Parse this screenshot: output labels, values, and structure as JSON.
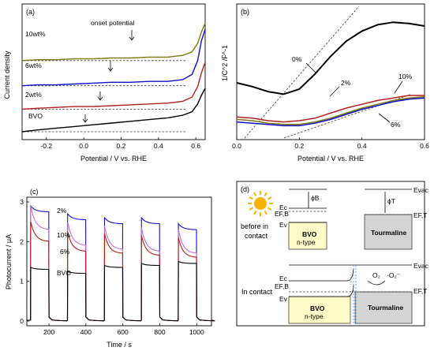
{
  "chart_data": [
    {
      "panel": "(a)",
      "type": "line",
      "xlabel": "Potential / V vs. RHE",
      "ylabel": "Current density",
      "xlim": [
        -0.33,
        0.65
      ],
      "xticks": [
        "-0.2",
        "0.0",
        "0.2",
        "0.4",
        "0.6"
      ],
      "annotation": "onset potential",
      "series": [
        {
          "name": "10wt%",
          "color": "#7a7a10",
          "x": [
            -0.33,
            -0.25,
            -0.15,
            -0.05,
            0.05,
            0.15,
            0.25,
            0.35,
            0.45,
            0.53,
            0.58,
            0.61,
            0.63,
            0.65
          ],
          "y": [
            8.2,
            8.3,
            8.3,
            8.4,
            8.4,
            8.5,
            8.5,
            8.6,
            8.6,
            8.8,
            9.2,
            10.2,
            11.5,
            12.5
          ]
        },
        {
          "name": "6wt%",
          "color": "#1010c8",
          "x": [
            -0.33,
            -0.25,
            -0.15,
            -0.05,
            0.05,
            0.15,
            0.25,
            0.35,
            0.45,
            0.53,
            0.58,
            0.61,
            0.63,
            0.65
          ],
          "y": [
            5.3,
            5.4,
            5.4,
            5.5,
            5.6,
            5.7,
            5.7,
            5.8,
            5.8,
            6.0,
            6.6,
            8.2,
            10.5,
            11.8
          ]
        },
        {
          "name": "2wt%",
          "color": "#b02020",
          "x": [
            -0.33,
            -0.25,
            -0.15,
            -0.05,
            0.05,
            0.15,
            0.25,
            0.35,
            0.45,
            0.53,
            0.58,
            0.61,
            0.63,
            0.65
          ],
          "y": [
            2.6,
            2.7,
            2.8,
            2.9,
            2.9,
            3.0,
            3.1,
            3.2,
            3.3,
            3.5,
            4.0,
            5.2,
            6.8,
            8.0
          ]
        },
        {
          "name": "BVO",
          "color": "#000000",
          "x": [
            -0.33,
            -0.25,
            -0.15,
            -0.05,
            0.05,
            0.15,
            0.25,
            0.35,
            0.45,
            0.53,
            0.58,
            0.61,
            0.63,
            0.65
          ],
          "y": [
            0.0,
            0.2,
            0.4,
            0.6,
            0.8,
            1.0,
            1.2,
            1.4,
            1.6,
            1.9,
            2.3,
            3.2,
            4.2,
            5.0
          ]
        }
      ]
    },
    {
      "panel": "(b)",
      "type": "line",
      "xlabel": "Potential / V vs. RHE",
      "ylabel": "1/C^2 /F^-1",
      "xlim": [
        0.0,
        0.6
      ],
      "xticks": [
        "0.0",
        "0.2",
        "0.4",
        "0.6"
      ],
      "series": [
        {
          "name": "0%",
          "color": "#000000",
          "x": [
            0.0,
            0.05,
            0.1,
            0.15,
            0.2,
            0.25,
            0.3,
            0.35,
            0.4,
            0.45,
            0.5,
            0.55,
            0.6
          ],
          "y": [
            0.45,
            0.42,
            0.38,
            0.36,
            0.4,
            0.52,
            0.66,
            0.78,
            0.86,
            0.91,
            0.93,
            0.92,
            0.9
          ]
        },
        {
          "name": "2%",
          "color": "#b02020",
          "x": [
            0.0,
            0.05,
            0.1,
            0.15,
            0.2,
            0.25,
            0.3,
            0.35,
            0.4,
            0.45,
            0.5,
            0.55,
            0.6
          ],
          "y": [
            0.18,
            0.17,
            0.15,
            0.14,
            0.15,
            0.17,
            0.21,
            0.25,
            0.28,
            0.31,
            0.33,
            0.35,
            0.35
          ]
        },
        {
          "name": "10%",
          "color": "#7a7a10",
          "x": [
            0.0,
            0.05,
            0.1,
            0.15,
            0.2,
            0.25,
            0.3,
            0.35,
            0.4,
            0.45,
            0.5,
            0.55,
            0.6
          ],
          "y": [
            0.16,
            0.15,
            0.13,
            0.12,
            0.12,
            0.14,
            0.17,
            0.21,
            0.25,
            0.28,
            0.31,
            0.33,
            0.34
          ]
        },
        {
          "name": "6%",
          "color": "#1010c8",
          "x": [
            0.0,
            0.05,
            0.1,
            0.15,
            0.2,
            0.25,
            0.3,
            0.35,
            0.4,
            0.45,
            0.5,
            0.55,
            0.6
          ],
          "y": [
            0.14,
            0.13,
            0.12,
            0.11,
            0.11,
            0.13,
            0.16,
            0.2,
            0.24,
            0.27,
            0.3,
            0.32,
            0.33
          ]
        }
      ]
    },
    {
      "panel": "(c)",
      "type": "line",
      "xlabel": "Time / s",
      "ylabel": "Photocurrent / μA",
      "xlim": [
        80,
        1080
      ],
      "ylim": [
        0,
        3
      ],
      "xticks": [
        200,
        400,
        600,
        800,
        1000
      ],
      "yticks": [
        0,
        1,
        2,
        3
      ],
      "on_times": [
        100,
        300,
        500,
        700,
        900
      ],
      "light_period": 100,
      "series": [
        {
          "name": "2%",
          "color": "#1010c8",
          "levels": [
            2.75,
            2.55,
            2.45,
            2.45,
            2.3
          ],
          "decay": 0.15
        },
        {
          "name": "10%",
          "color": "#c070c8",
          "levels": [
            2.3,
            1.9,
            1.8,
            1.75,
            1.7
          ],
          "decay": 0.6
        },
        {
          "name": "6%",
          "color": "#b02020",
          "levels": [
            2.0,
            1.75,
            1.7,
            1.65,
            1.6
          ],
          "decay": 0.5
        },
        {
          "name": "BVO",
          "color": "#000000",
          "levels": [
            1.3,
            1.2,
            1.35,
            1.4,
            1.45
          ],
          "decay": 0.05
        }
      ]
    }
  ],
  "labels": {
    "panel_a": "(a)",
    "panel_b": "(b)",
    "panel_c": "(c)",
    "panel_d": "(d)",
    "onset": "onset potential",
    "a_10": "10wt%",
    "a_6": "6wt%",
    "a_2": "2wt%",
    "a_bvo": "BVO",
    "b_0": "0%",
    "b_2": "2%",
    "b_10": "10%",
    "b_6": "6%",
    "c_2": "2%",
    "c_10": "10%",
    "c_6": "6%",
    "c_bvo": "BVO"
  },
  "diagram": {
    "before_label_1": "before in",
    "before_label_2": "contact",
    "in_contact_label": "In contact",
    "bvo_label_1": "BVO",
    "bvo_label_2": "n-type",
    "tourmaline_label": "Tourmaline",
    "phi_b": "ϕB",
    "phi_t": "ϕT",
    "e_vac": "Evac",
    "e_c": "Ec",
    "e_fb": "EF,B",
    "e_v": "Ev",
    "e_ft": "EF,T",
    "o2": "O₂",
    "o2_minus": "·O₂⁻",
    "bvo_fill": "#fffbc8",
    "tourmaline_fill": "#d4d4d4",
    "sun_color": "#f4b400"
  }
}
